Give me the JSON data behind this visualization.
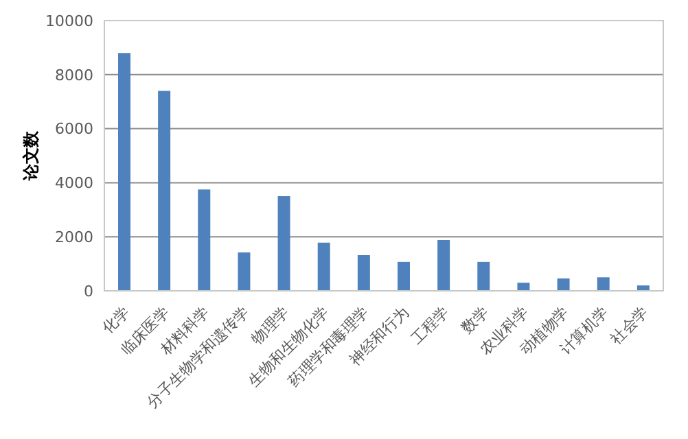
{
  "chart_data": {
    "type": "bar",
    "ylabel": "论文数",
    "categories": [
      "化学",
      "临床医学",
      "材料科学",
      "分子生物学和遗传学",
      "物理学",
      "生物和生物化学",
      "药理学和毒理学",
      "神经和行为",
      "工程学",
      "数学",
      "农业科学",
      "动植物学",
      "计算机学",
      "社会学"
    ],
    "values": [
      8800,
      7400,
      3750,
      1420,
      3500,
      1780,
      1320,
      1070,
      1880,
      1070,
      300,
      460,
      500,
      200
    ],
    "color": "#4f81bd",
    "ylim": [
      0,
      10000
    ],
    "yticks": [
      0,
      2000,
      4000,
      6000,
      8000,
      10000
    ],
    "grid": "y"
  }
}
